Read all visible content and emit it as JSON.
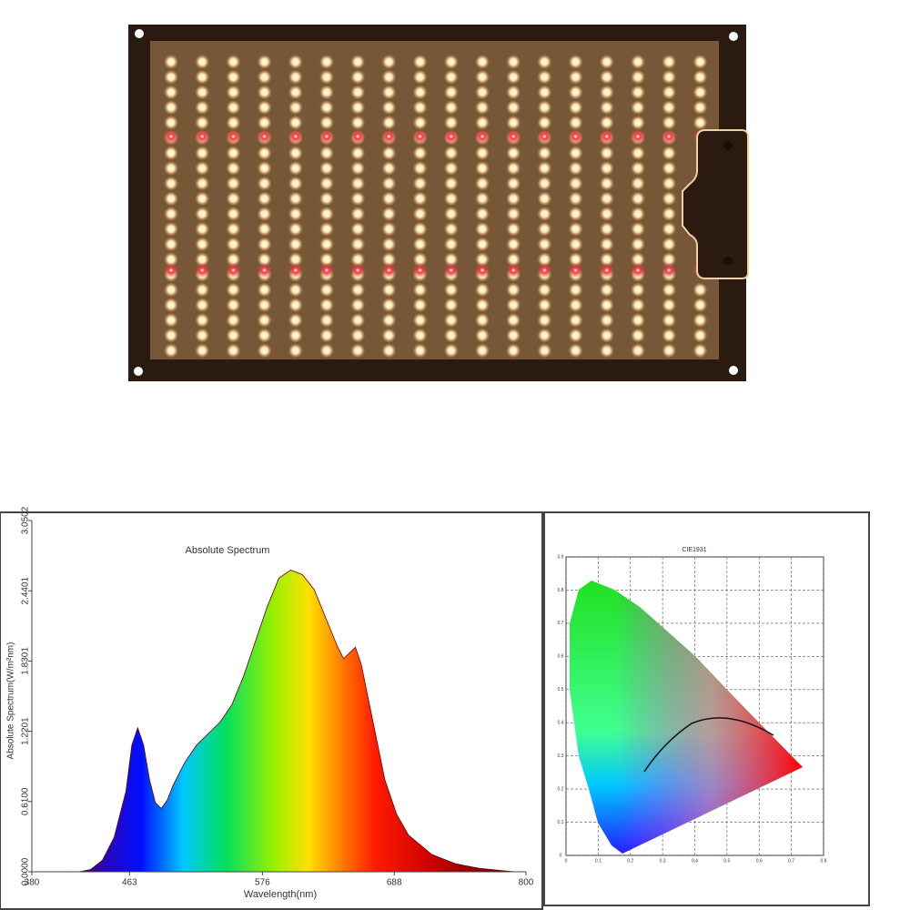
{
  "chart_data": [
    {
      "type": "area",
      "title": "Absolute Spectrum",
      "x_label": "Wavelength(nm)",
      "y_label": "Absolute Spectrum(W/m²nm)",
      "x": [
        420,
        430,
        440,
        450,
        460,
        465,
        470,
        475,
        480,
        485,
        490,
        495,
        500,
        510,
        520,
        530,
        540,
        550,
        560,
        570,
        580,
        590,
        600,
        610,
        620,
        630,
        640,
        645,
        650,
        655,
        660,
        670,
        680,
        690,
        700,
        720,
        740,
        760,
        780,
        790
      ],
      "values": [
        0,
        0.02,
        0.1,
        0.3,
        0.7,
        1.1,
        1.25,
        1.1,
        0.8,
        0.6,
        0.55,
        0.62,
        0.75,
        0.95,
        1.1,
        1.2,
        1.3,
        1.45,
        1.7,
        2.0,
        2.3,
        2.55,
        2.62,
        2.58,
        2.45,
        2.2,
        1.95,
        1.85,
        1.9,
        1.95,
        1.8,
        1.3,
        0.8,
        0.5,
        0.32,
        0.15,
        0.07,
        0.03,
        0.01,
        0
      ],
      "xlim": [
        380,
        800
      ],
      "xticks": [
        380,
        463,
        576,
        688,
        800
      ],
      "ylim": [
        0,
        3.0502
      ],
      "yticks": [
        {
          "value": 0,
          "label": "0.0000"
        },
        {
          "value": 0.61,
          "label": "0.6100"
        },
        {
          "value": 1.2201,
          "label": "1.2201"
        },
        {
          "value": 1.8301,
          "label": "1.8301"
        },
        {
          "value": 2.4401,
          "label": "2.4401"
        },
        {
          "value": 3.0502,
          "label": "3.0502"
        }
      ]
    },
    {
      "type": "cie",
      "title": "CIE1931",
      "xlim": [
        0,
        0.8
      ],
      "xticks": [
        0,
        0.1,
        0.2,
        0.3,
        0.4,
        0.5,
        0.6,
        0.7,
        0.8
      ],
      "ylim": [
        0,
        0.9
      ],
      "yticks": [
        0,
        0.1,
        0.2,
        0.3,
        0.4,
        0.5,
        0.6,
        0.7,
        0.8,
        0.9
      ],
      "grid": true
    }
  ]
}
